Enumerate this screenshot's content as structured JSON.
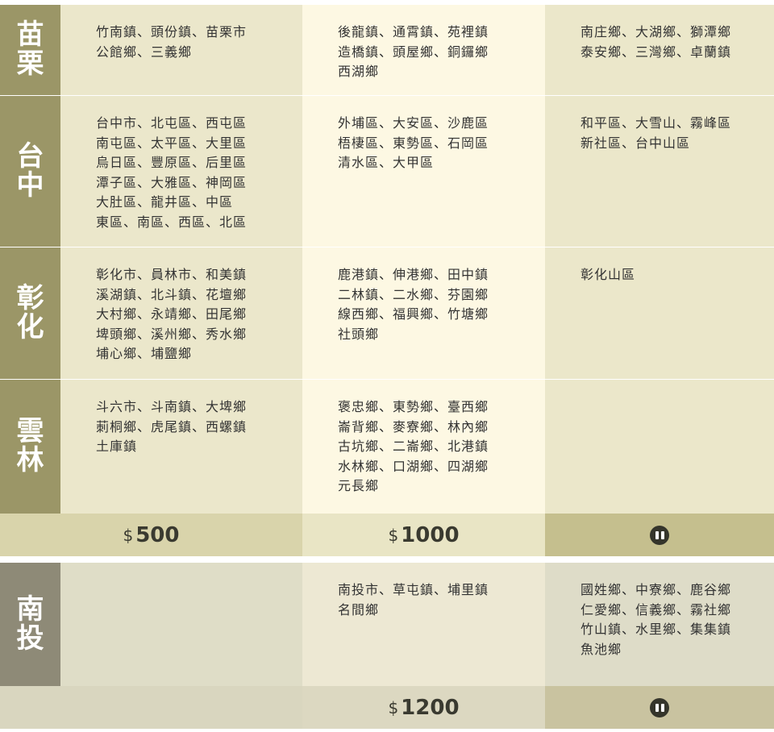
{
  "colors": {
    "label": "#9b9667",
    "label2": "#8e8a77",
    "col1": "#ebe7cb",
    "col2": "#fdf8e3",
    "col3": "#ebe7ca",
    "price1": "#d9d4ab",
    "price2": "#e9e5c5",
    "price3": "#c5bf8e"
  },
  "section1": {
    "regions": [
      {
        "name": "苗栗",
        "c1": [
          "竹南鎮、頭份鎮、苗栗市",
          "公館鄉、三義鄉"
        ],
        "c2": [
          "後龍鎮、通霄鎮、苑裡鎮",
          "造橋鎮、頭屋鄉、銅鑼鄉",
          "西湖鄉"
        ],
        "c3": [
          "南庄鄉、大湖鄉、獅潭鄉",
          "泰安鄉、三灣鄉、卓蘭鎮"
        ]
      },
      {
        "name": "台中",
        "c1": [
          "台中市、北屯區、西屯區",
          "南屯區、太平區、大里區",
          "烏日區、豐原區、后里區",
          "潭子區、大雅區、神岡區",
          "大肚區、龍井區、中區",
          "東區、南區、西區、北區"
        ],
        "c2": [
          "外埔區、大安區、沙鹿區",
          "梧棲區、東勢區、石岡區",
          "清水區、大甲區"
        ],
        "c3": [
          "和平區、大雪山、霧峰區",
          "新社區、台中山區"
        ]
      },
      {
        "name": "彰化",
        "c1": [
          "彰化市、員林市、和美鎮",
          "溪湖鎮、北斗鎮、花壇鄉",
          "大村鄉、永靖鄉、田尾鄉",
          "埤頭鄉、溪州鄉、秀水鄉",
          "埔心鄉、埔鹽鄉"
        ],
        "c2": [
          "鹿港鎮、伸港鄉、田中鎮",
          "二林鎮、二水鄉、芬園鄉",
          "線西鄉、福興鄉、竹塘鄉",
          "社頭鄉"
        ],
        "c3": [
          "彰化山區"
        ]
      },
      {
        "name": "雲林",
        "c1": [
          "斗六市、斗南鎮、大埤鄉",
          "莿桐鄉、虎尾鎮、西螺鎮",
          "土庫鎮"
        ],
        "c2": [
          "褒忠鄉、東勢鄉、臺西鄉",
          "崙背鄉、麥寮鄉、林內鄉",
          "古坑鄉、二崙鄉、北港鎮",
          "水林鄉、口湖鄉、四湖鄉",
          "元長鄉"
        ],
        "c3": []
      }
    ],
    "prices": {
      "currency": "$",
      "c1": "500",
      "c2": "1000",
      "c3_icon": "pause-icon"
    }
  },
  "section2": {
    "region": {
      "name": "南投",
      "c1": [],
      "c2": [
        "南投市、草屯鎮、埔里鎮",
        "名間鄉"
      ],
      "c3": [
        "國姓鄉、中寮鄉、鹿谷鄉",
        "仁愛鄉、信義鄉、霧社鄉",
        "竹山鎮、水里鄉、集集鎮",
        "魚池鄉"
      ]
    },
    "prices": {
      "currency": "$",
      "c1": "",
      "c2": "1200",
      "c3_icon": "pause-icon"
    }
  }
}
